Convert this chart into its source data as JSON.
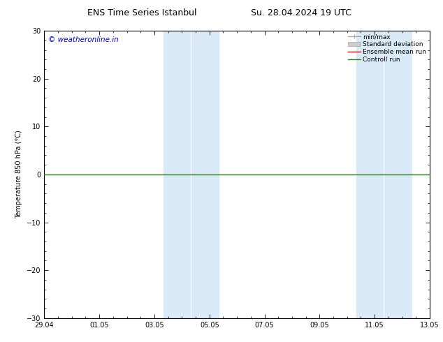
{
  "title_left": "ENS Time Series Istanbul",
  "title_right": "Su. 28.04.2024 19 UTC",
  "ylabel": "Temperature 850 hPa (°C)",
  "watermark": "© weatheronline.in",
  "watermark_color": "#0000cc",
  "ylim": [
    -30,
    30
  ],
  "yticks": [
    -30,
    -20,
    -10,
    0,
    10,
    20,
    30
  ],
  "background_color": "#ffffff",
  "plot_bg_color": "#ffffff",
  "border_color": "#000000",
  "line_y": 0.0,
  "line_color_ensemble": "#ff0000",
  "line_color_control": "#228b22",
  "shaded_color": "#daeaf7",
  "shaded_bands": [
    {
      "x_start": 4.33,
      "x_end": 4.83
    },
    {
      "x_start": 4.83,
      "x_end": 6.33
    },
    {
      "x_start": 11.33,
      "x_end": 11.83
    },
    {
      "x_start": 11.83,
      "x_end": 13.33
    }
  ],
  "legend_items": [
    {
      "label": "min/max",
      "color": "#aaaaaa"
    },
    {
      "label": "Standard deviation",
      "color": "#cccccc"
    },
    {
      "label": "Ensemble mean run",
      "color": "#ff0000"
    },
    {
      "label": "Controll run",
      "color": "#228b22"
    }
  ],
  "font_size_title": 9,
  "font_size_axis": 7,
  "font_size_legend": 6.5,
  "font_size_watermark": 7.5,
  "xtick_labels": [
    "29.04",
    "01.05",
    "03.05",
    "05.05",
    "07.05",
    "09.05",
    "11.05",
    "13.05"
  ],
  "xtick_positions": [
    0,
    2,
    4,
    6,
    8,
    10,
    12,
    14
  ],
  "xlim": [
    0,
    14
  ]
}
